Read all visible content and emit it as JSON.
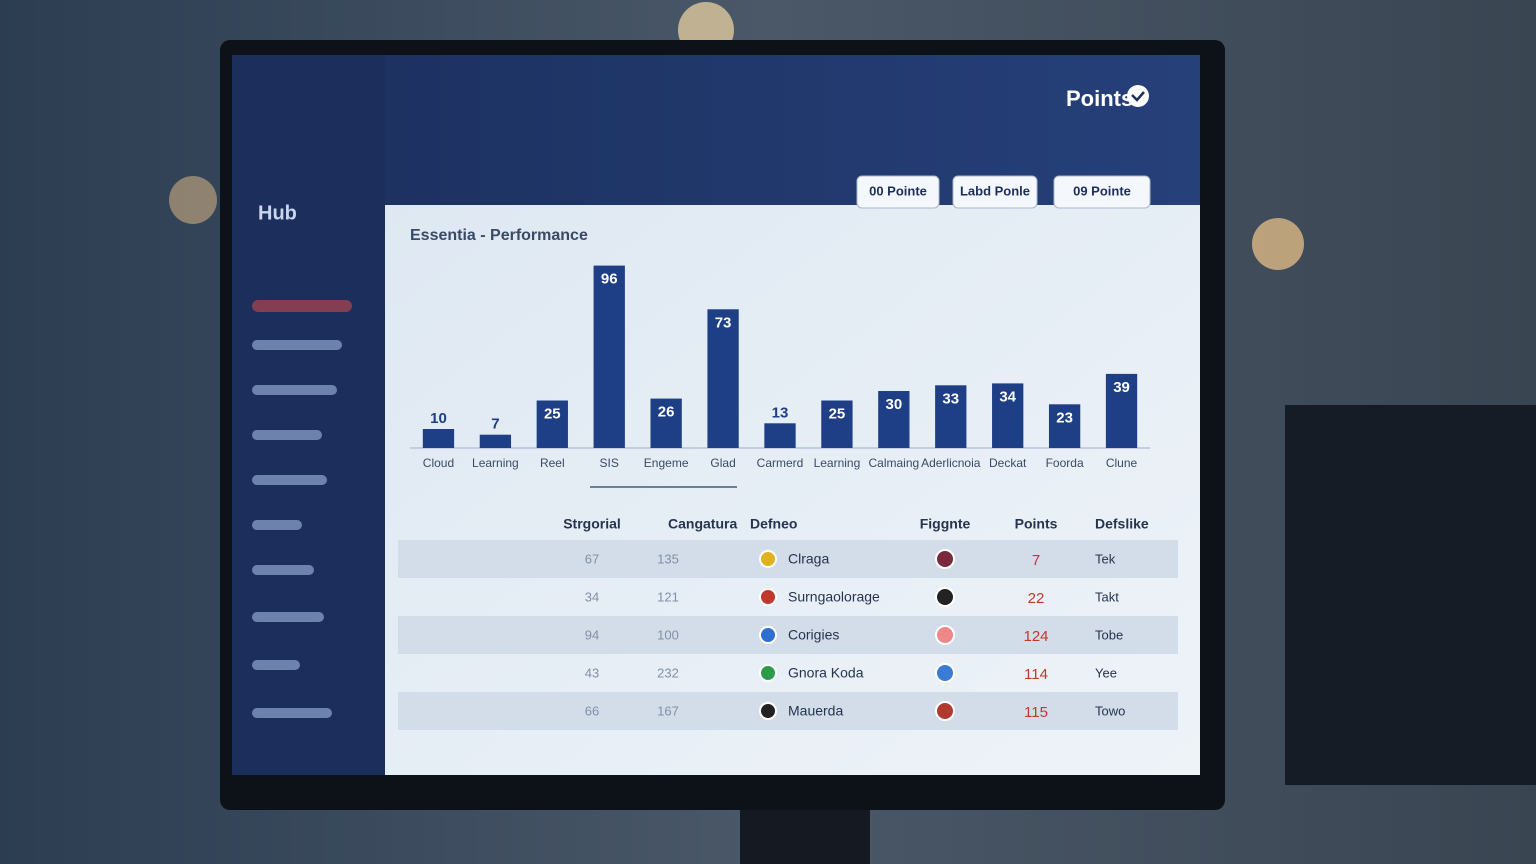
{
  "header": {
    "title": "Points",
    "buttons": [
      "00 Pointe",
      "Labd Ponle",
      "09 Pointe"
    ]
  },
  "sidebar": {
    "title": "Hub"
  },
  "chart_data": {
    "type": "bar",
    "title": "Essentia - Performance",
    "categories": [
      "Cloud",
      "Learning",
      "Reel",
      "SIS",
      "Engeme",
      "Glad",
      "Carmerd",
      "Learning",
      "Calmaing",
      "Aderlicnoia",
      "Deckat",
      "Foorda",
      "Clune"
    ],
    "values": [
      10,
      7,
      25,
      96,
      26,
      73,
      13,
      25,
      30,
      33,
      34,
      23,
      39
    ],
    "color": "#1e3f86",
    "ylim": [
      0,
      100
    ]
  },
  "table": {
    "columns": [
      "Strgorial",
      "Cangatura",
      "Defneo",
      "Figgnte",
      "Points",
      "Defslike"
    ],
    "rows": [
      [
        67,
        135,
        "Clraga",
        7,
        "Tek"
      ],
      [
        34,
        121,
        "Surngaolorage",
        22,
        "Takt"
      ],
      [
        94,
        100,
        "Corigies",
        124,
        "Tobe"
      ],
      [
        43,
        232,
        "Gnora Koda",
        114,
        "Yee"
      ],
      [
        66,
        167,
        "Mauerda",
        115,
        "Towo"
      ]
    ]
  }
}
